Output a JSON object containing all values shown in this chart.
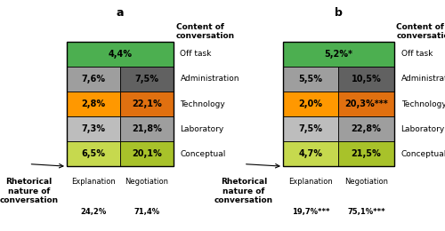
{
  "panel_a": {
    "title": "a",
    "col1_label": "Explanation\n24,2%",
    "col2_label": "Negotiation\n71,4%",
    "rows": [
      {
        "label": "Off task",
        "color": "#4caf50",
        "val1": "4,4%",
        "val2": null,
        "span": true
      },
      {
        "label": "Administration",
        "color_l": "#9e9e9e",
        "color_r": "#616161",
        "val1": "7,6%",
        "val2": "7,5%",
        "span": false
      },
      {
        "label": "Technology",
        "color_l": "#ff9800",
        "color_r": "#e07010",
        "val1": "2,8%",
        "val2": "22,1%",
        "span": false
      },
      {
        "label": "Laboratory",
        "color_l": "#bdbdbd",
        "color_r": "#9e9e9e",
        "val1": "7,3%",
        "val2": "21,8%",
        "span": false
      },
      {
        "label": "Conceptual",
        "color_l": "#c6d94e",
        "color_r": "#a8c22a",
        "val1": "6,5%",
        "val2": "20,1%",
        "span": false
      }
    ],
    "content_label": "Content of\nconversation",
    "rhetorical_label": "Rhetorical\nnature of\nconversation",
    "col1_x_label": "Explanation",
    "col1_pct": "24,2%",
    "col2_x_label": "Negotiation",
    "col2_pct": "71,4%"
  },
  "panel_b": {
    "title": "b",
    "col1_label": "Explanation\n19.7%***",
    "col2_label": "Negotiation\n75.1%***",
    "rows": [
      {
        "label": "Off task",
        "color": "#4caf50",
        "val1": "5,2%*",
        "val2": null,
        "span": true
      },
      {
        "label": "Administrative",
        "color_l": "#9e9e9e",
        "color_r": "#616161",
        "val1": "5,5%",
        "val2": "10,5%",
        "span": false
      },
      {
        "label": "Technology",
        "color_l": "#ff9800",
        "color_r": "#e07010",
        "val1": "2,0%",
        "val2": "20,3%***",
        "span": false
      },
      {
        "label": "Laboratory",
        "color_l": "#bdbdbd",
        "color_r": "#9e9e9e",
        "val1": "7,5%",
        "val2": "22,8%",
        "span": false
      },
      {
        "label": "Conceptual",
        "color_l": "#c6d94e",
        "color_r": "#a8c22a",
        "val1": "4,7%",
        "val2": "21,5%",
        "span": false
      }
    ],
    "content_label": "Content of\nconversation",
    "rhetorical_label": "Rhetorical\nnature of\nconversation",
    "col1_x_label": "Explanation",
    "col1_pct": "19,7%***",
    "col2_x_label": "Negotiation",
    "col2_pct": "75,1%***"
  },
  "bg_color": "#ffffff",
  "border_color": "#000000",
  "text_color": "#000000",
  "font_size_cell": 7,
  "font_size_label": 6.5,
  "font_size_title": 9,
  "font_size_axis": 6
}
